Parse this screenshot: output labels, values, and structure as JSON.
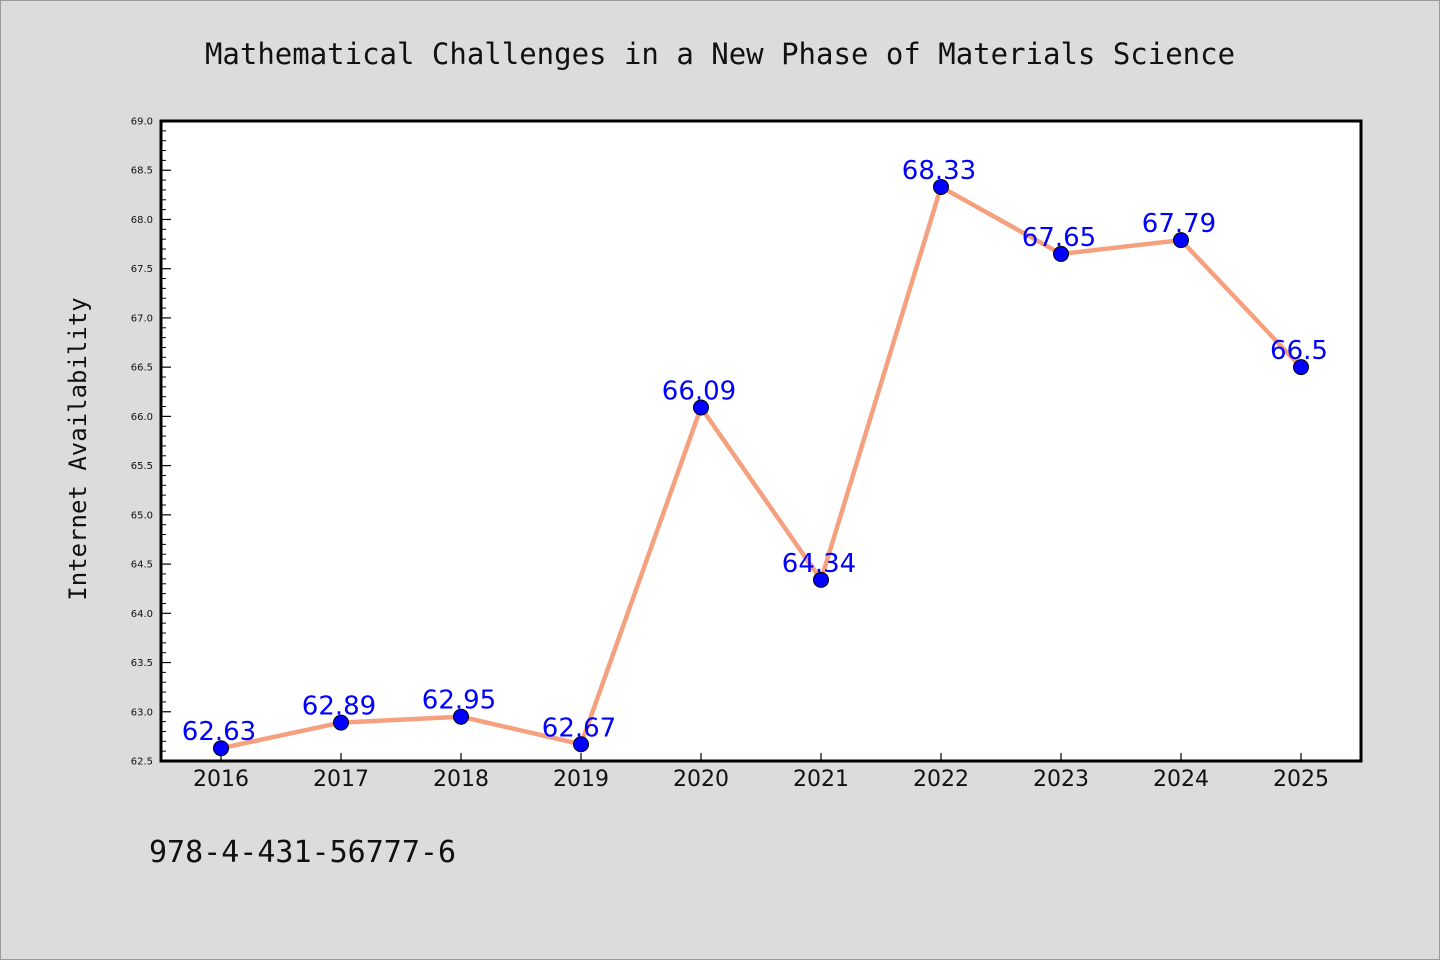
{
  "chart_data": {
    "type": "line",
    "title": "Mathematical Challenges in a New Phase of Materials Science",
    "xlabel": "",
    "ylabel": "Internet Availability",
    "categories": [
      "2016",
      "2017",
      "2018",
      "2019",
      "2020",
      "2021",
      "2022",
      "2023",
      "2024",
      "2025"
    ],
    "series": [
      {
        "values": [
          62.63,
          62.89,
          62.95,
          62.67,
          66.09,
          64.34,
          68.33,
          67.65,
          67.79,
          66.5
        ]
      }
    ],
    "data_labels": [
      "62.63",
      "62.89",
      "62.95",
      "62.67",
      "66.09",
      "64.34",
      "68.33",
      "67.65",
      "67.79",
      "66.5"
    ],
    "ylim": [
      62.5,
      69.0
    ],
    "yticks": [
      "62.5",
      "63.0",
      "63.5",
      "64.0",
      "64.5",
      "65.0",
      "65.5",
      "66.0",
      "66.5",
      "67.0",
      "67.5",
      "68.0",
      "68.5",
      "69.0"
    ],
    "grid": false,
    "legend": "none",
    "colors": {
      "line": "#f5a07e",
      "marker": "#0000ff",
      "data_label": "#0000ff",
      "plot_background": "#ffffff",
      "figure_background": "#dcdcdc"
    }
  },
  "footer": {
    "isbn": "978-4-431-56777-6"
  }
}
